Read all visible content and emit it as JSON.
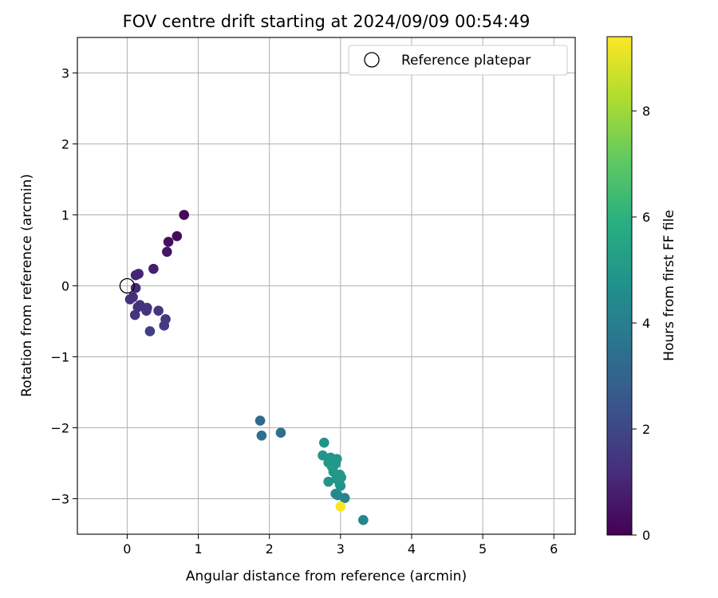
{
  "chart_data": {
    "type": "scatter",
    "title": "FOV centre drift starting at 2024/09/09 00:54:49",
    "xlabel": "Angular distance from reference (arcmin)",
    "ylabel": "Rotation from reference (arcmin)",
    "xlim": [
      -0.7,
      6.3
    ],
    "ylim": [
      -3.5,
      3.5
    ],
    "xticks": [
      0,
      1,
      2,
      3,
      4,
      5,
      6
    ],
    "yticks": [
      -3,
      -2,
      -1,
      0,
      1,
      2,
      3
    ],
    "grid": true,
    "legend": {
      "location": "top-right",
      "entries": [
        "Reference platepar"
      ]
    },
    "reference_point": {
      "x": 0,
      "y": 0,
      "marker": "open-circle",
      "color": "#000000"
    },
    "colorbar": {
      "label": "Hours from first FF file",
      "range": [
        0,
        9.4
      ],
      "ticks": [
        0,
        2,
        4,
        6,
        8
      ],
      "colormap": "viridis"
    },
    "points": [
      {
        "x": 0.8,
        "y": 1.0,
        "h": 0.15
      },
      {
        "x": 0.7,
        "y": 0.7,
        "h": 0.3
      },
      {
        "x": 0.58,
        "y": 0.62,
        "h": 0.4
      },
      {
        "x": 0.56,
        "y": 0.48,
        "h": 0.55
      },
      {
        "x": 0.37,
        "y": 0.24,
        "h": 0.8
      },
      {
        "x": 0.16,
        "y": 0.17,
        "h": 0.95
      },
      {
        "x": 0.12,
        "y": 0.15,
        "h": 1.0
      },
      {
        "x": 0.12,
        "y": -0.03,
        "h": 1.1
      },
      {
        "x": 0.08,
        "y": -0.16,
        "h": 1.2
      },
      {
        "x": 0.04,
        "y": -0.19,
        "h": 1.25
      },
      {
        "x": 0.18,
        "y": -0.27,
        "h": 1.3
      },
      {
        "x": 0.15,
        "y": -0.3,
        "h": 1.3
      },
      {
        "x": 0.28,
        "y": -0.31,
        "h": 1.35
      },
      {
        "x": 0.27,
        "y": -0.35,
        "h": 1.35
      },
      {
        "x": 0.11,
        "y": -0.41,
        "h": 1.4
      },
      {
        "x": 0.44,
        "y": -0.35,
        "h": 1.45
      },
      {
        "x": 0.54,
        "y": -0.47,
        "h": 1.5
      },
      {
        "x": 0.52,
        "y": -0.56,
        "h": 1.6
      },
      {
        "x": 0.32,
        "y": -0.64,
        "h": 1.7
      },
      {
        "x": 1.87,
        "y": -1.9,
        "h": 3.2
      },
      {
        "x": 1.89,
        "y": -2.11,
        "h": 3.4
      },
      {
        "x": 2.16,
        "y": -2.07,
        "h": 3.5
      },
      {
        "x": 2.77,
        "y": -2.21,
        "h": 4.8
      },
      {
        "x": 2.75,
        "y": -2.39,
        "h": 4.9
      },
      {
        "x": 2.86,
        "y": -2.42,
        "h": 4.9
      },
      {
        "x": 2.95,
        "y": -2.44,
        "h": 4.95
      },
      {
        "x": 2.83,
        "y": -2.49,
        "h": 5.0
      },
      {
        "x": 2.93,
        "y": -2.51,
        "h": 5.0
      },
      {
        "x": 2.88,
        "y": -2.55,
        "h": 5.0
      },
      {
        "x": 2.9,
        "y": -2.62,
        "h": 5.0
      },
      {
        "x": 2.99,
        "y": -2.66,
        "h": 5.0
      },
      {
        "x": 3.01,
        "y": -2.7,
        "h": 5.0
      },
      {
        "x": 2.94,
        "y": -2.72,
        "h": 4.9
      },
      {
        "x": 2.83,
        "y": -2.76,
        "h": 4.8
      },
      {
        "x": 2.99,
        "y": -2.8,
        "h": 4.9
      },
      {
        "x": 3.0,
        "y": -2.82,
        "h": 4.8
      },
      {
        "x": 2.93,
        "y": -2.93,
        "h": 4.5
      },
      {
        "x": 2.96,
        "y": -2.95,
        "h": 4.4
      },
      {
        "x": 3.06,
        "y": -2.99,
        "h": 4.2
      },
      {
        "x": 3.0,
        "y": -3.11,
        "h": 9.3
      },
      {
        "x": 3.32,
        "y": -3.3,
        "h": 4.3
      }
    ]
  }
}
